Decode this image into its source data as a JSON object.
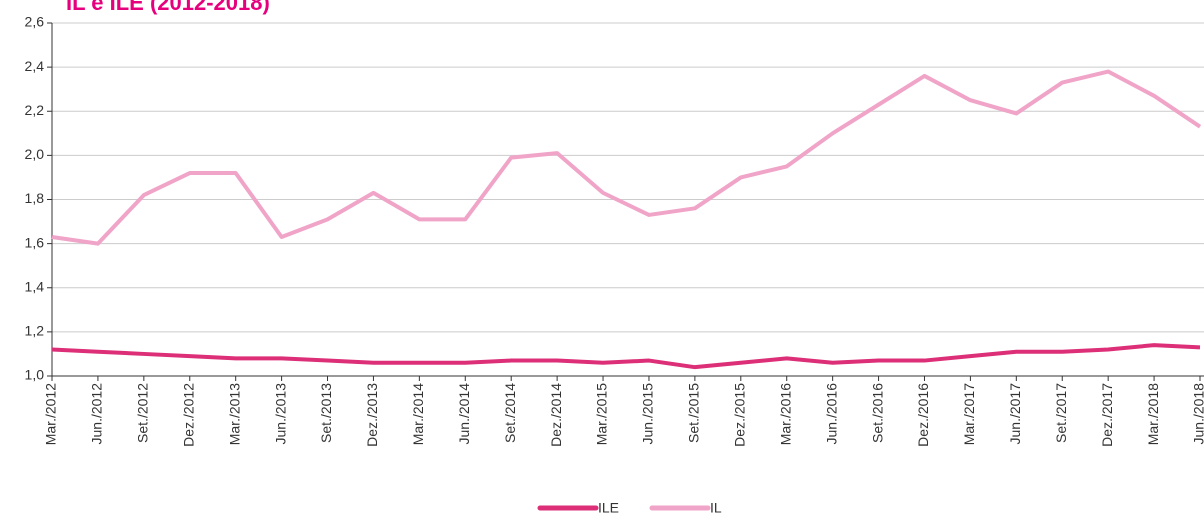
{
  "chart_data": {
    "type": "line",
    "title": "IL e ILE (2012-2018)",
    "categories": [
      "Mar./2012",
      "Jun./2012",
      "Set./2012",
      "Dez./2012",
      "Mar./2013",
      "Jun./2013",
      "Set./2013",
      "Dez./2013",
      "Mar./2014",
      "Jun./2014",
      "Set./2014",
      "Dez./2014",
      "Mar./2015",
      "Jun./2015",
      "Set./2015",
      "Dez./2015",
      "Mar./2016",
      "Jun./2016",
      "Set./2016",
      "Dez./2016",
      "Mar./2017",
      "Jun./2017",
      "Set./2017",
      "Dez./2017",
      "Mar./2018",
      "Jun./2018"
    ],
    "series": [
      {
        "name": "ILE",
        "color": "#dc2f78",
        "values": [
          1.12,
          1.11,
          1.1,
          1.09,
          1.08,
          1.08,
          1.07,
          1.06,
          1.06,
          1.06,
          1.07,
          1.07,
          1.06,
          1.07,
          1.04,
          1.06,
          1.08,
          1.06,
          1.07,
          1.07,
          1.09,
          1.11,
          1.11,
          1.12,
          1.14,
          1.13
        ]
      },
      {
        "name": "IL",
        "color": "#f0a4c8",
        "values": [
          1.63,
          1.6,
          1.82,
          1.92,
          1.92,
          1.63,
          1.71,
          1.83,
          1.71,
          1.71,
          1.99,
          2.01,
          1.83,
          1.73,
          1.76,
          1.9,
          1.95,
          2.1,
          2.23,
          2.36,
          2.25,
          2.19,
          2.33,
          2.38,
          2.27,
          2.13
        ]
      }
    ],
    "ylim": [
      1.0,
      2.6
    ],
    "yticks": [
      {
        "value": 1.0,
        "label": "1,0"
      },
      {
        "value": 1.2,
        "label": "1,2"
      },
      {
        "value": 1.4,
        "label": "1,4"
      },
      {
        "value": 1.6,
        "label": "1,6"
      },
      {
        "value": 1.8,
        "label": "1,8"
      },
      {
        "value": 2.0,
        "label": "2,0"
      },
      {
        "value": 2.2,
        "label": "2,2"
      },
      {
        "value": 2.4,
        "label": "2,4"
      },
      {
        "value": 2.6,
        "label": "2,6"
      }
    ],
    "grid": true
  }
}
